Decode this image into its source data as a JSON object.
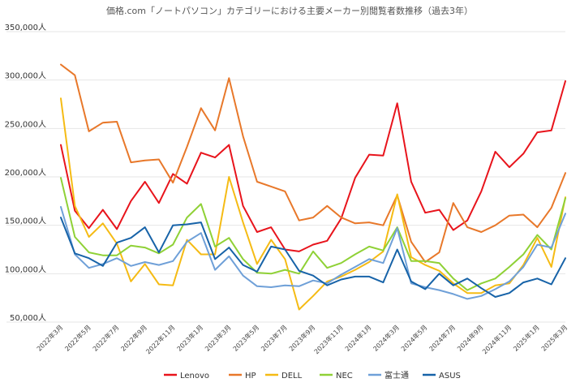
{
  "chart_data": {
    "type": "line",
    "title": "価格.com「ノートパソコン」カテゴリーにおける主要メーカー別閲覧者数推移（過去3年）",
    "xlabel": "",
    "ylabel": "",
    "ylim": [
      50000,
      350000
    ],
    "yticks": [
      50000,
      100000,
      150000,
      200000,
      250000,
      300000,
      350000
    ],
    "ytick_labels": [
      "50,000人",
      "100,000人",
      "150,000人",
      "200,000人",
      "250,000人",
      "300,000人",
      "350,000人"
    ],
    "grid": true,
    "legend_position": "bottom",
    "categories": [
      "2022年3月",
      "2022年4月",
      "2022年5月",
      "2022年6月",
      "2022年7月",
      "2022年8月",
      "2022年9月",
      "2022年10月",
      "2022年11月",
      "2022年12月",
      "2023年1月",
      "2023年2月",
      "2023年3月",
      "2023年4月",
      "2023年5月",
      "2023年6月",
      "2023年7月",
      "2023年8月",
      "2023年9月",
      "2023年10月",
      "2023年11月",
      "2023年12月",
      "2024年1月",
      "2024年2月",
      "2024年3月",
      "2024年4月",
      "2024年5月",
      "2024年6月",
      "2024年7月",
      "2024年8月",
      "2024年9月",
      "2024年10月",
      "2024年11月",
      "2024年12月",
      "2025年1月",
      "2025年2月",
      "2025年3月"
    ],
    "x_tick_labels": [
      "2022年3月",
      "2022年5月",
      "2022年7月",
      "2022年9月",
      "2022年11月",
      "2023年1月",
      "2023年3月",
      "2023年5月",
      "2023年7月",
      "2023年9月",
      "2023年11月",
      "2024年1月",
      "2024年3月",
      "2024年5月",
      "2024年7月",
      "2024年9月",
      "2024年11月",
      "2025年1月",
      "2025年3月"
    ],
    "series": [
      {
        "name": "Lenovo",
        "color": "#e8141c",
        "values": [
          233000,
          165000,
          147000,
          166000,
          146000,
          175000,
          195000,
          173000,
          203000,
          193000,
          225000,
          220000,
          233000,
          170000,
          143000,
          148000,
          125000,
          123000,
          130000,
          134000,
          157000,
          199000,
          223000,
          222000,
          276000,
          195000,
          163000,
          166000,
          145000,
          155000,
          185000,
          226000,
          210000,
          224000,
          246000,
          248000,
          299000
        ]
      },
      {
        "name": "HP",
        "color": "#e8782a",
        "values": [
          316000,
          305000,
          247000,
          256000,
          257000,
          215000,
          217000,
          218000,
          194000,
          231000,
          271000,
          248000,
          302000,
          242000,
          195000,
          190000,
          185000,
          155000,
          158000,
          170000,
          158000,
          152000,
          153000,
          150000,
          181000,
          133000,
          112000,
          122000,
          173000,
          148000,
          143000,
          150000,
          160000,
          161000,
          148000,
          168000,
          204000
        ]
      },
      {
        "name": "DELL",
        "color": "#f5bb14",
        "values": [
          281000,
          170000,
          138000,
          152000,
          131000,
          92000,
          110000,
          89000,
          88000,
          135000,
          120000,
          120000,
          200000,
          153000,
          110000,
          135000,
          115000,
          63000,
          77000,
          92000,
          97000,
          104000,
          112000,
          123000,
          182000,
          117000,
          109000,
          103000,
          90000,
          80000,
          80000,
          88000,
          90000,
          109000,
          137000,
          107000,
          179000
        ]
      },
      {
        "name": "NEC",
        "color": "#8fd136",
        "values": [
          199000,
          138000,
          122000,
          119000,
          119000,
          129000,
          127000,
          121000,
          130000,
          158000,
          172000,
          128000,
          137000,
          115000,
          101000,
          100000,
          104000,
          100000,
          123000,
          106000,
          111000,
          120000,
          128000,
          124000,
          148000,
          113000,
          113000,
          111000,
          95000,
          83000,
          90000,
          95000,
          107000,
          120000,
          140000,
          125000,
          178000
        ]
      },
      {
        "name": "富士通",
        "color": "#6fa0d8",
        "values": [
          169000,
          120000,
          106000,
          110000,
          116000,
          108000,
          112000,
          109000,
          113000,
          133000,
          142000,
          104000,
          118000,
          98000,
          87000,
          86000,
          88000,
          87000,
          93000,
          90000,
          99000,
          107000,
          115000,
          111000,
          147000,
          90000,
          86000,
          83000,
          79000,
          74000,
          77000,
          84000,
          92000,
          107000,
          130000,
          127000,
          162000
        ]
      },
      {
        "name": "ASUS",
        "color": "#1763a8",
        "values": [
          158000,
          121000,
          116000,
          108000,
          132000,
          137000,
          148000,
          122000,
          150000,
          151000,
          153000,
          115000,
          127000,
          109000,
          102000,
          128000,
          125000,
          103000,
          98000,
          88000,
          94000,
          97000,
          97000,
          91000,
          125000,
          92000,
          84000,
          100000,
          88000,
          95000,
          85000,
          76000,
          80000,
          91000,
          95000,
          89000,
          116000
        ]
      }
    ]
  }
}
